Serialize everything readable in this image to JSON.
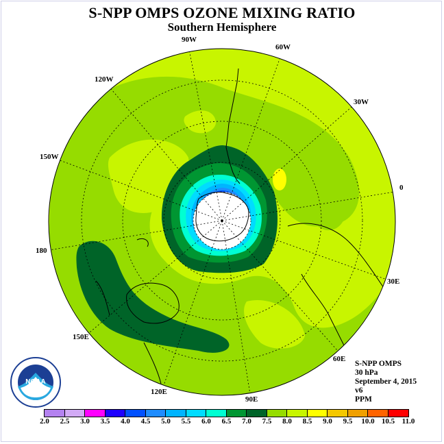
{
  "title": "S-NPP OMPS OZONE MIXING RATIO",
  "subtitle": "Southern Hemisphere",
  "longitude_labels": [
    "90W",
    "60W",
    "30W",
    "0",
    "30E",
    "60E",
    "90E",
    "120E",
    "150E",
    "180",
    "150W",
    "120W"
  ],
  "info": {
    "instrument": "S-NPP OMPS",
    "level": "30 hPa",
    "date": "September 4, 2015",
    "version": "v6",
    "units": "PPM"
  },
  "logo_text": "NOAA",
  "colorbar": {
    "ticks": [
      "2.0",
      "2.5",
      "3.0",
      "3.5",
      "4.0",
      "4.5",
      "5.0",
      "5.5",
      "6.0",
      "6.5",
      "7.0",
      "7.5",
      "8.0",
      "8.5",
      "9.0",
      "9.5",
      "10.0",
      "10.5",
      "11.0"
    ],
    "colors": [
      "#b482f0",
      "#d2aaf5",
      "#ff00ff",
      "#1e00ff",
      "#0050ff",
      "#1e8cff",
      "#00b4ff",
      "#00dcff",
      "#00ffd2",
      "#009632",
      "#006428",
      "#96dc00",
      "#c8f500",
      "#ffff00",
      "#f5c800",
      "#f0a000",
      "#ff6400",
      "#ff0000",
      "#8b5a3c"
    ]
  },
  "map_colors": {
    "background": "#c8f500",
    "band_7_5": "#96dc00",
    "band_7_0": "#006428",
    "band_6_5": "#009632",
    "band_6_0": "#00ffd2",
    "band_5_5": "#00dcff",
    "band_5_0": "#00b4ff",
    "band_4_5": "#1e8cff",
    "band_4_0": "#0050ff",
    "band_3_5": "#1e00ff",
    "no_data": "#ffffff",
    "yellow_patch": "#ffff00"
  }
}
